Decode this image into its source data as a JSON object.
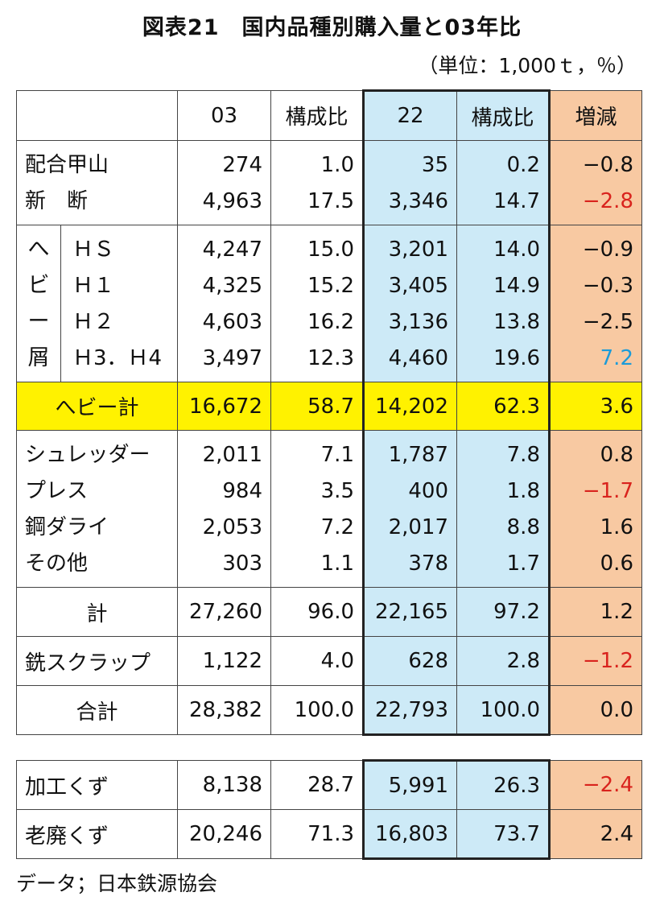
{
  "title": "図表21　国内品種別購入量と03年比",
  "unit": "（単位：1,000ｔ，％）",
  "headers": [
    "03",
    "構成比",
    "22",
    "構成比",
    "増減"
  ],
  "groups": {
    "g1": {
      "rows": [
        {
          "label": "配合甲山",
          "v03": "274",
          "s03": "1.0",
          "v22": "35",
          "s22": "0.2",
          "diff": "−0.8"
        },
        {
          "label": "新　断",
          "v03": "4,963",
          "s03": "17.5",
          "v22": "3,346",
          "s22": "14.7",
          "diff": "−2.8"
        }
      ]
    },
    "heavy": {
      "vertical": [
        "へ",
        "ビ",
        "ー",
        "屑"
      ],
      "rows": [
        {
          "label": "ＨＳ",
          "v03": "4,247",
          "s03": "15.0",
          "v22": "3,201",
          "s22": "14.0",
          "diff": "−0.9"
        },
        {
          "label": "Ｈ１",
          "v03": "4,325",
          "s03": "15.2",
          "v22": "3,405",
          "s22": "14.9",
          "diff": "−0.3"
        },
        {
          "label": "Ｈ２",
          "v03": "4,603",
          "s03": "16.2",
          "v22": "3,136",
          "s22": "13.8",
          "diff": "−2.5"
        },
        {
          "label": "Ｈ3．Ｈ4",
          "v03": "3,497",
          "s03": "12.3",
          "v22": "4,460",
          "s22": "19.6",
          "diff": "7.2"
        }
      ]
    },
    "heavy_total": {
      "label": "へビー計",
      "v03": "16,672",
      "s03": "58.7",
      "v22": "14,202",
      "s22": "62.3",
      "diff": "3.6"
    },
    "g2": {
      "rows": [
        {
          "label": "シュレッダー",
          "v03": "2,011",
          "s03": "7.1",
          "v22": "1,787",
          "s22": "7.8",
          "diff": "0.8"
        },
        {
          "label": "プレス",
          "v03": "984",
          "s03": "3.5",
          "v22": "400",
          "s22": "1.8",
          "diff": "−1.7"
        },
        {
          "label": "鋼ダライ",
          "v03": "2,053",
          "s03": "7.2",
          "v22": "2,017",
          "s22": "8.8",
          "diff": "1.6"
        },
        {
          "label": "その他",
          "v03": "303",
          "s03": "1.1",
          "v22": "378",
          "s22": "1.7",
          "diff": "0.6"
        }
      ]
    },
    "subtotal": {
      "label": "計",
      "v03": "27,260",
      "s03": "96.0",
      "v22": "22,165",
      "s22": "97.2",
      "diff": "1.2"
    },
    "iron": {
      "label": "銑スクラップ",
      "v03": "1,122",
      "s03": "4.0",
      "v22": "628",
      "s22": "2.8",
      "diff": "−1.2"
    },
    "grand": {
      "label": "合計",
      "v03": "28,382",
      "s03": "100.0",
      "v22": "22,793",
      "s22": "100.0",
      "diff": "0.0"
    }
  },
  "second": {
    "rows": [
      {
        "label": "加工くず",
        "v03": "8,138",
        "s03": "28.7",
        "v22": "5,991",
        "s22": "26.3",
        "diff": "−2.4"
      },
      {
        "label": "老廃くず",
        "v03": "20,246",
        "s03": "71.3",
        "v22": "16,803",
        "s22": "73.7",
        "diff": "2.4"
      }
    ]
  },
  "source": "データ；日本鉄源協会",
  "colors": {
    "blue_fill": "#cdeaf7",
    "orange_fill": "#f8c9a2",
    "yellow_fill": "#fff200",
    "negative_red": "#d9231d",
    "highlight_blue": "#1c9bd8"
  }
}
